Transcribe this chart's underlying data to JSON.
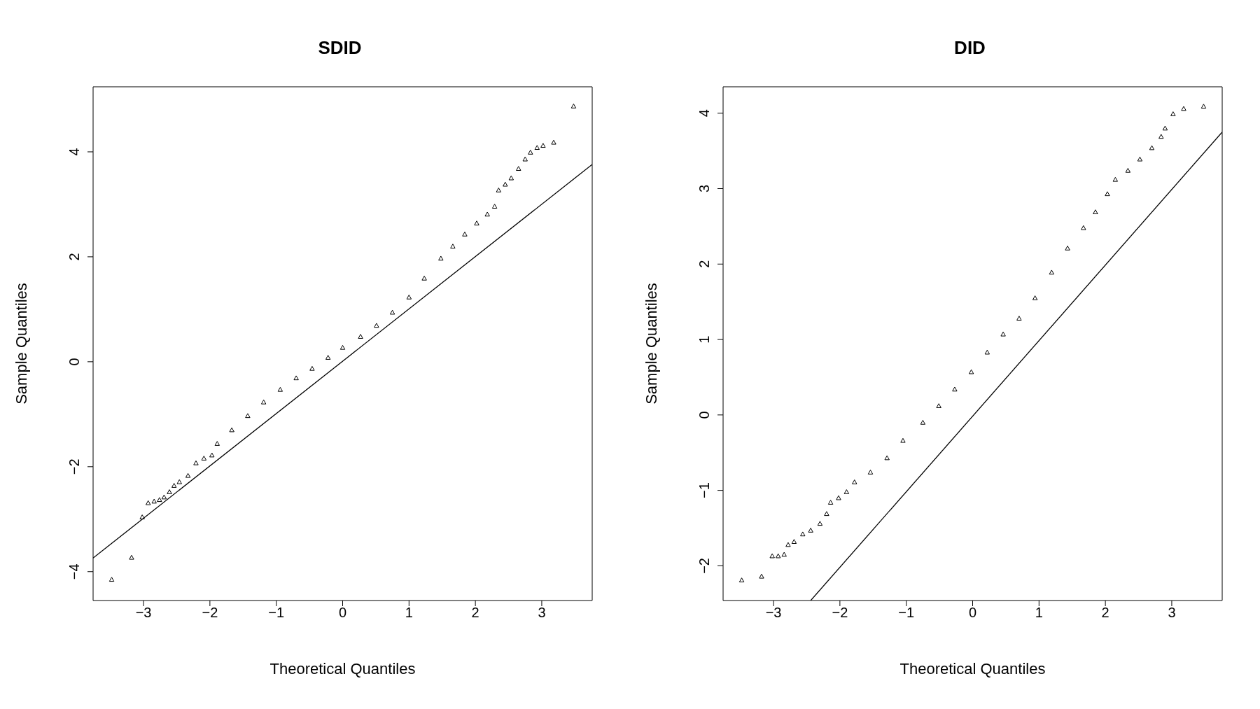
{
  "chart_data": [
    {
      "type": "scatter",
      "title": "SDID",
      "xlabel": "Theoretical Quantiles",
      "ylabel": "Sample Quantiles",
      "xlim": [
        -3.76,
        3.76
      ],
      "ylim": [
        -4.55,
        5.24
      ],
      "xticks": [
        {
          "value": -3,
          "label": "−3"
        },
        {
          "value": -2,
          "label": "−2"
        },
        {
          "value": -1,
          "label": "−1"
        },
        0,
        1,
        2,
        3
      ],
      "yticks": [
        {
          "value": -4,
          "label": "−4"
        },
        {
          "value": -2,
          "label": "−2"
        },
        0,
        2,
        4
      ],
      "series": [
        {
          "marker": "triangle",
          "color": "#000000",
          "x": [
            -3.48,
            -3.18,
            -3.02,
            -2.93,
            -2.84,
            -2.76,
            -2.69,
            -2.61,
            -2.54,
            -2.46,
            -2.33,
            -2.21,
            -2.09,
            -1.97,
            -1.89,
            -1.67,
            -1.43,
            -1.19,
            -0.94,
            -0.7,
            -0.46,
            -0.22,
            0,
            0.27,
            0.51,
            0.75,
            1.0,
            1.23,
            1.48,
            1.66,
            1.84,
            2.02,
            2.18,
            2.29,
            2.35,
            2.45,
            2.54,
            2.65,
            2.75,
            2.83,
            2.93,
            3.02,
            3.18,
            3.48
          ],
          "values": [
            -4.15,
            -3.73,
            -2.96,
            -2.69,
            -2.66,
            -2.63,
            -2.58,
            -2.48,
            -2.36,
            -2.29,
            -2.17,
            -1.93,
            -1.84,
            -1.78,
            -1.56,
            -1.3,
            -1.03,
            -0.77,
            -0.53,
            -0.31,
            -0.13,
            0.08,
            0.27,
            0.48,
            0.69,
            0.94,
            1.23,
            1.59,
            1.97,
            2.2,
            2.43,
            2.64,
            2.81,
            2.96,
            3.27,
            3.38,
            3.5,
            3.68,
            3.86,
            3.99,
            4.08,
            4.12,
            4.18,
            4.87
          ]
        },
        {
          "type": "line",
          "color": "#000000",
          "x": [
            -3.76,
            3.76
          ],
          "values": [
            -3.74,
            3.76
          ]
        }
      ]
    },
    {
      "type": "scatter",
      "title": "DID",
      "xlabel": "Theoretical Quantiles",
      "ylabel": "Sample Quantiles",
      "xlim": [
        -3.76,
        3.76
      ],
      "ylim": [
        -2.46,
        4.35
      ],
      "xticks": [
        {
          "value": -3,
          "label": "−3"
        },
        {
          "value": -2,
          "label": "−2"
        },
        {
          "value": -1,
          "label": "−1"
        },
        0,
        1,
        2,
        3
      ],
      "yticks": [
        {
          "value": -2,
          "label": "−2"
        },
        {
          "value": -1,
          "label": "−1"
        },
        0,
        1,
        2,
        3,
        4
      ],
      "series": [
        {
          "marker": "triangle",
          "color": "#000000",
          "x": [
            -3.48,
            -3.18,
            -3.02,
            -2.93,
            -2.84,
            -2.78,
            -2.69,
            -2.56,
            -2.44,
            -2.3,
            -2.2,
            -2.14,
            -2.02,
            -1.9,
            -1.78,
            -1.54,
            -1.29,
            -1.05,
            -0.75,
            -0.51,
            -0.27,
            -0.02,
            0.22,
            0.46,
            0.7,
            0.94,
            1.19,
            1.43,
            1.67,
            1.85,
            2.03,
            2.15,
            2.34,
            2.52,
            2.7,
            2.84,
            2.9,
            3.02,
            3.18,
            3.48
          ],
          "values": [
            -2.19,
            -2.14,
            -1.87,
            -1.87,
            -1.85,
            -1.72,
            -1.68,
            -1.58,
            -1.53,
            -1.44,
            -1.31,
            -1.16,
            -1.1,
            -1.02,
            -0.89,
            -0.76,
            -0.57,
            -0.34,
            -0.1,
            0.12,
            0.34,
            0.57,
            0.83,
            1.07,
            1.28,
            1.55,
            1.89,
            2.21,
            2.48,
            2.69,
            2.93,
            3.12,
            3.24,
            3.39,
            3.54,
            3.69,
            3.8,
            3.99,
            4.06,
            4.09
          ]
        },
        {
          "type": "line",
          "color": "#000000",
          "x": [
            -2.44,
            3.76
          ],
          "values": [
            -2.46,
            3.75
          ]
        }
      ]
    }
  ]
}
